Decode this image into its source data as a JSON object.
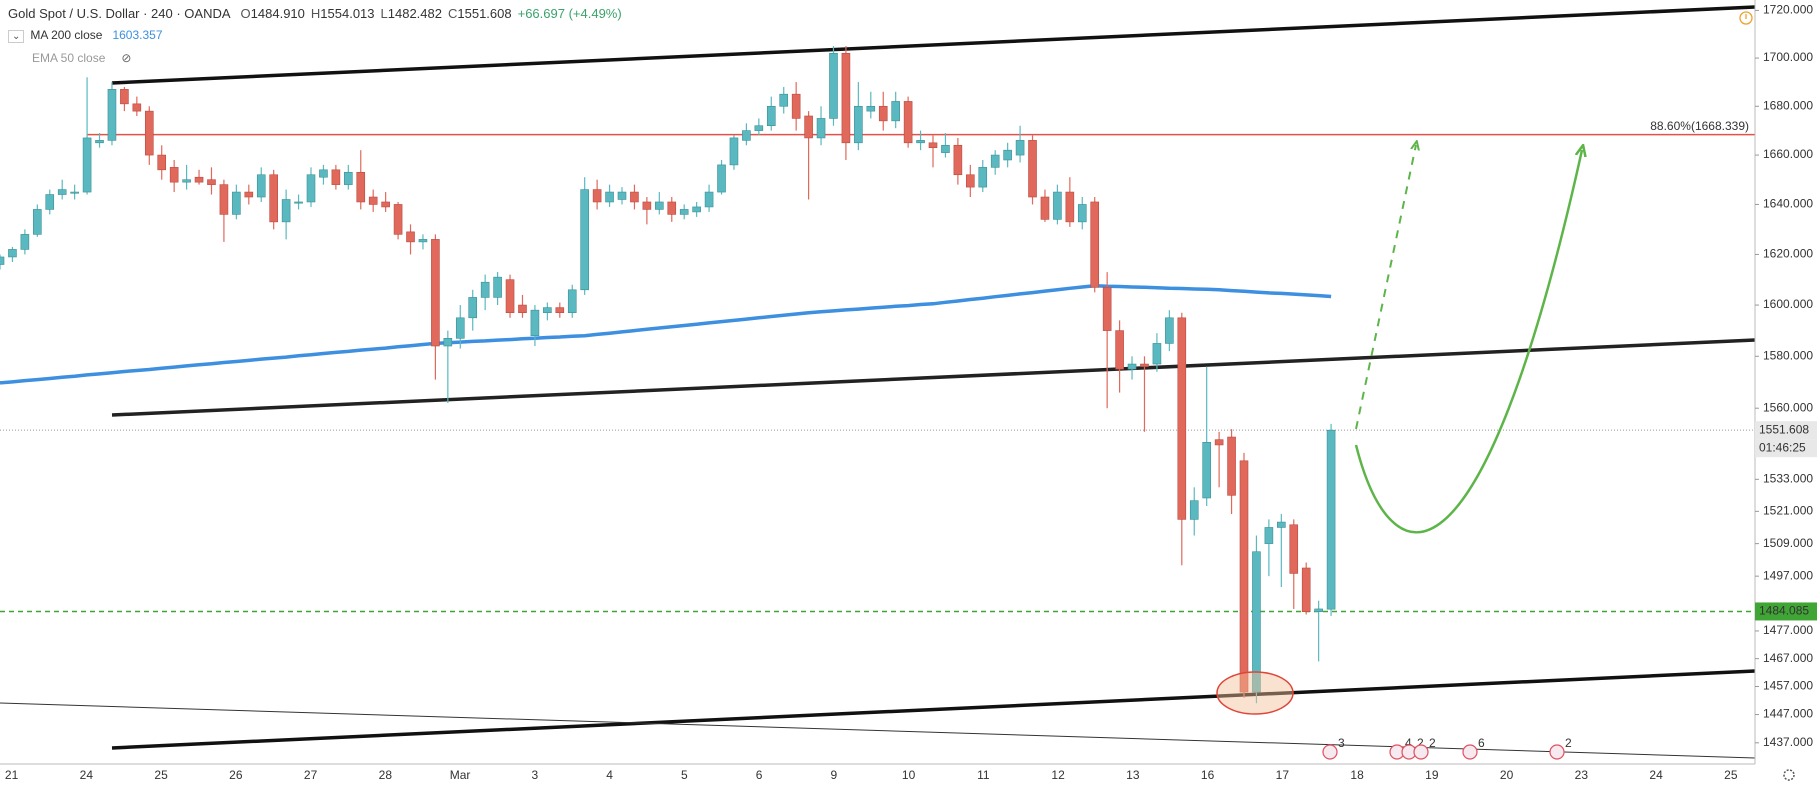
{
  "header": {
    "title": "Gold Spot / U.S. Dollar · 240 · OANDA",
    "ohlc": [
      {
        "label": "O",
        "value": "1484.910"
      },
      {
        "label": "H",
        "value": "1554.013"
      },
      {
        "label": "L",
        "value": "1482.482"
      },
      {
        "label": "C",
        "value": "1551.608"
      }
    ],
    "change": "+66.697 (+4.49%)"
  },
  "chart_data": {
    "type": "candlestick",
    "log_scale": true,
    "grid": false,
    "categories": [
      "21",
      "24",
      "25",
      "26",
      "27",
      "28",
      "Mar",
      "3",
      "4",
      "5",
      "6",
      "9",
      "10",
      "11",
      "12",
      "13",
      "16",
      "17",
      "18",
      "19",
      "20",
      "23",
      "24",
      "25"
    ],
    "ylim": [
      1431.3,
      1724.4
    ],
    "yticks": [
      {
        "value": 1720,
        "label": "1720.000"
      },
      {
        "value": 1700,
        "label": "1700.000"
      },
      {
        "value": 1680,
        "label": "1680.000"
      },
      {
        "value": 1660,
        "label": "1660.000"
      },
      {
        "value": 1640,
        "label": "1640.000"
      },
      {
        "value": 1620,
        "label": "1620.000"
      },
      {
        "value": 1600,
        "label": "1600.000"
      },
      {
        "value": 1580,
        "label": "1580.000"
      },
      {
        "value": 1560,
        "label": "1560.000"
      },
      {
        "value": 1533,
        "label": "1533.000"
      },
      {
        "value": 1521,
        "label": "1521.000"
      },
      {
        "value": 1509,
        "label": "1509.000"
      },
      {
        "value": 1497,
        "label": "1497.000"
      },
      {
        "value": 1477,
        "label": "1477.000"
      },
      {
        "value": 1467,
        "label": "1467.000"
      },
      {
        "value": 1457,
        "label": "1457.000"
      },
      {
        "value": 1447,
        "label": "1447.000"
      },
      {
        "value": 1437,
        "label": "1437.000"
      }
    ],
    "series": [
      {
        "name": "Gold Spot / U.S. Dollar",
        "up_color": "#5ab9c0",
        "down_color": "#e0695b",
        "open": [
          1616,
          1619,
          1622,
          1628,
          1638,
          1644,
          1645,
          1645,
          1665,
          1666,
          1687,
          1681,
          1678,
          1660,
          1655,
          1649,
          1651,
          1650,
          1648,
          1636,
          1645,
          1643,
          1652,
          1633,
          1641,
          1641,
          1651,
          1654,
          1648,
          1653,
          1643,
          1641,
          1640,
          1629,
          1625,
          1626,
          1584,
          1587,
          1595,
          1603,
          1603,
          1610,
          1600,
          1588,
          1597,
          1599,
          1597,
          1606,
          1646,
          1641,
          1642,
          1645,
          1641,
          1638,
          1641,
          1636,
          1637,
          1639,
          1645,
          1656,
          1666,
          1670,
          1672,
          1680,
          1685,
          1676,
          1667,
          1675,
          1702,
          1665,
          1678,
          1680,
          1674,
          1682,
          1665,
          1665,
          1661,
          1664,
          1652,
          1647,
          1655,
          1658,
          1660,
          1666,
          1643,
          1634,
          1645,
          1633,
          1641,
          1607,
          1590,
          1575,
          1577,
          1577,
          1585,
          1595,
          1518,
          1526,
          1548,
          1549,
          1540,
          1455,
          1509,
          1515,
          1516,
          1500,
          1484,
          1484.91
        ],
        "high": [
          1620,
          1623,
          1630,
          1640,
          1646,
          1650,
          1648,
          1692,
          1669,
          1690,
          1688,
          1684,
          1680,
          1664,
          1658,
          1656,
          1654,
          1655,
          1650,
          1648,
          1648,
          1655,
          1654,
          1646,
          1644,
          1655,
          1656,
          1656,
          1656,
          1662,
          1646,
          1645,
          1641,
          1632,
          1628,
          1628,
          1590,
          1600,
          1606,
          1612,
          1613,
          1612,
          1604,
          1600,
          1601,
          1601,
          1608,
          1651,
          1650,
          1648,
          1647,
          1648,
          1643,
          1645,
          1643,
          1640,
          1641,
          1648,
          1658,
          1668,
          1673,
          1675,
          1684,
          1688,
          1690,
          1678,
          1680,
          1705,
          1705,
          1690,
          1686,
          1686,
          1686,
          1684,
          1670,
          1668,
          1669,
          1667,
          1656,
          1658,
          1662,
          1665,
          1672,
          1668,
          1646,
          1648,
          1651,
          1643,
          1643,
          1613,
          1594,
          1580,
          1580,
          1589,
          1598,
          1597,
          1530,
          1576,
          1551,
          1552,
          1543,
          1512,
          1518,
          1520,
          1518,
          1502,
          1488,
          1554.013
        ],
        "low": [
          1614,
          1617,
          1620,
          1627,
          1636,
          1642,
          1642,
          1644,
          1663,
          1664,
          1678,
          1676,
          1656,
          1650,
          1645,
          1646,
          1648,
          1644,
          1625,
          1634,
          1640,
          1641,
          1630,
          1626,
          1638,
          1639,
          1648,
          1646,
          1646,
          1638,
          1637,
          1637,
          1626,
          1620,
          1622,
          1571,
          1562,
          1583,
          1590,
          1598,
          1600,
          1595,
          1595,
          1584,
          1594,
          1595,
          1595,
          1604,
          1638,
          1639,
          1640,
          1638,
          1632,
          1636,
          1633,
          1634,
          1635,
          1637,
          1644,
          1654,
          1664,
          1668,
          1670,
          1677,
          1670,
          1642,
          1664,
          1672,
          1658,
          1662,
          1675,
          1670,
          1671,
          1663,
          1662,
          1655,
          1659,
          1648,
          1643,
          1645,
          1652,
          1655,
          1657,
          1640,
          1633,
          1632,
          1631,
          1630,
          1605,
          1560,
          1566,
          1571,
          1551,
          1574,
          1582,
          1501,
          1512,
          1523,
          1530,
          1520,
          1453,
          1451,
          1497,
          1493,
          1485,
          1483,
          1466,
          1482.482
        ],
        "close": [
          1619,
          1622,
          1628,
          1638,
          1644,
          1646,
          1645,
          1667,
          1666,
          1687,
          1681,
          1678,
          1660,
          1654,
          1649,
          1650,
          1649,
          1648,
          1636,
          1645,
          1643,
          1652,
          1633,
          1642,
          1641,
          1652,
          1654,
          1648,
          1653,
          1641,
          1640,
          1639,
          1628,
          1625,
          1626,
          1584,
          1587,
          1595,
          1603,
          1609,
          1611,
          1597,
          1597,
          1598,
          1599,
          1597,
          1606,
          1646,
          1641,
          1645,
          1645,
          1641,
          1638,
          1641,
          1636,
          1638,
          1639,
          1645,
          1656,
          1667,
          1670,
          1672,
          1680,
          1685,
          1675,
          1667,
          1675,
          1702,
          1665,
          1680,
          1680,
          1674,
          1682,
          1665,
          1666,
          1663,
          1664,
          1652,
          1647,
          1655,
          1660,
          1662,
          1666,
          1643,
          1634,
          1645,
          1633,
          1640,
          1607,
          1590,
          1575,
          1577,
          1576,
          1585,
          1595,
          1518,
          1525,
          1547,
          1546,
          1527,
          1455,
          1506,
          1515,
          1517,
          1498,
          1484,
          1485,
          1551.608
        ]
      }
    ],
    "lines": [
      {
        "name": "MA 200 close",
        "color": "#3d8fe0",
        "visible": true,
        "values": [
          1569.7,
          1570.1,
          1570.6,
          1571.0,
          1571.4,
          1571.9,
          1572.3,
          1572.8,
          1573.2,
          1573.6,
          1574.1,
          1574.5,
          1574.9,
          1575.4,
          1575.8,
          1576.3,
          1576.7,
          1577.1,
          1577.6,
          1578.0,
          1578.4,
          1578.9,
          1579.3,
          1579.7,
          1580.2,
          1580.6,
          1581.1,
          1581.5,
          1581.9,
          1582.4,
          1582.8,
          1583.2,
          1583.7,
          1584.1,
          1584.6,
          1585.0,
          1585.3,
          1585.5,
          1585.8,
          1586.0,
          1586.3,
          1586.5,
          1586.8,
          1587.0,
          1587.3,
          1587.5,
          1587.8,
          1588.0,
          1588.5,
          1589.0,
          1589.5,
          1590.0,
          1590.5,
          1591.0,
          1591.5,
          1592.0,
          1592.5,
          1593.0,
          1593.5,
          1594.0,
          1594.5,
          1595.0,
          1595.5,
          1596.0,
          1596.5,
          1597.0,
          1597.4,
          1597.7,
          1598.1,
          1598.4,
          1598.8,
          1599.1,
          1599.5,
          1599.8,
          1600.2,
          1600.5,
          1601.1,
          1601.6,
          1602.2,
          1602.7,
          1603.3,
          1603.8,
          1604.4,
          1604.9,
          1605.5,
          1606.0,
          1606.6,
          1607.1,
          1607.6,
          1607.4,
          1607.3,
          1607.1,
          1607.0,
          1606.8,
          1606.6,
          1606.5,
          1606.3,
          1606.2,
          1606.0,
          1605.7,
          1605.4,
          1605.1,
          1604.8,
          1604.6,
          1604.3,
          1604.0,
          1603.7,
          1603.357
        ]
      },
      {
        "name": "EMA 50 close",
        "visible": false
      }
    ],
    "last_price": {
      "value": 1551.608,
      "label": "1551.608",
      "countdown": "01:46:25"
    },
    "levels": [
      {
        "value": 1668.339,
        "label": "88.60%(1668.339)",
        "color": "#e0524a"
      },
      {
        "value": 1484.085,
        "label": "1484.085",
        "color": "#3fa535"
      }
    ],
    "events": [
      "3",
      "4",
      "2",
      "2",
      "6",
      "2"
    ]
  }
}
